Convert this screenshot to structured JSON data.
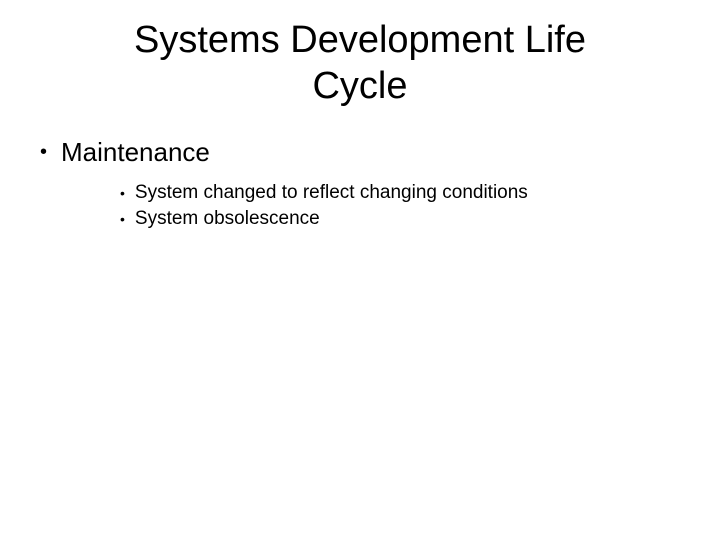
{
  "slide": {
    "title_line1": "Systems Development Life",
    "title_line2": "Cycle",
    "bullet1": "Maintenance",
    "sub1": "System changed to reflect changing conditions",
    "sub2": "System obsolescence",
    "colors": {
      "background": "#ffffff",
      "text": "#000000"
    },
    "fonts": {
      "title_size": 38,
      "l1_size": 26,
      "l2_size": 19
    }
  }
}
